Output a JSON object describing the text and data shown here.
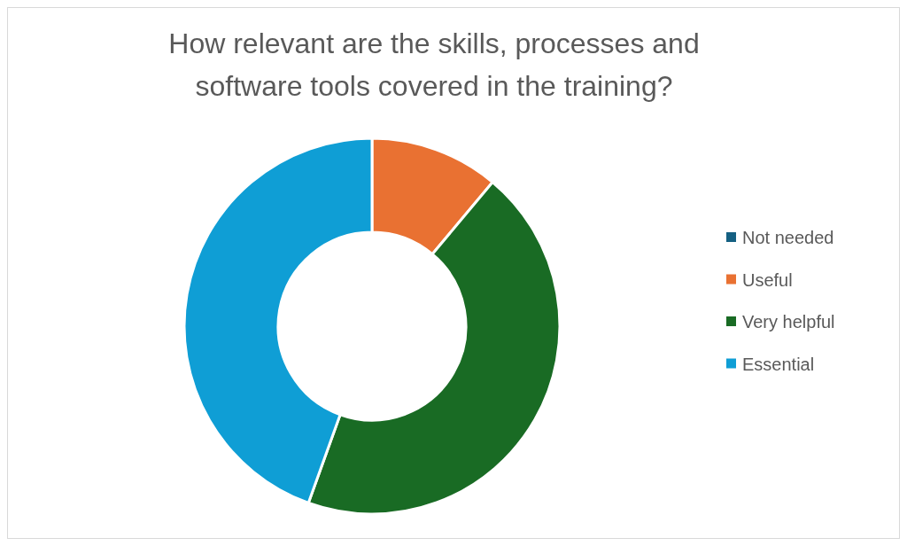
{
  "chart_data": {
    "type": "donut",
    "title": "How relevant are the skills, processes and software tools covered in the training?",
    "categories": [
      "Not needed",
      "Useful",
      "Very helpful",
      "Essential"
    ],
    "values": [
      0,
      11.1,
      44.4,
      44.5
    ],
    "colors": [
      "#156082",
      "#e97132",
      "#196b24",
      "#0f9ed5"
    ],
    "legend": "right"
  }
}
